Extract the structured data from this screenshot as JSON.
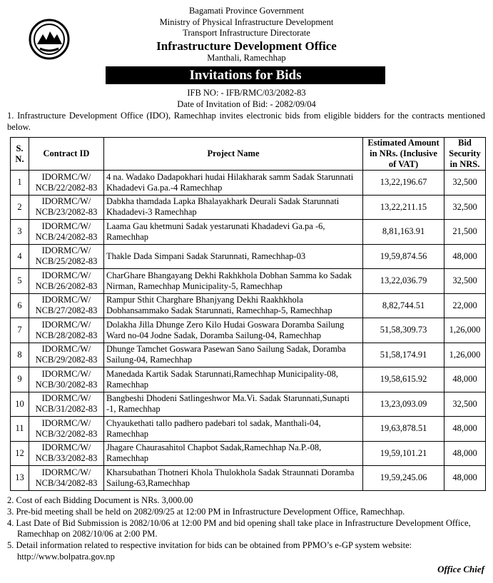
{
  "header": {
    "lines": [
      "Bagamati Province Government",
      "Ministry of Physical Infrastructure Development",
      "Transport Infrastructure Directorate"
    ],
    "office": "Infrastructure Development Office",
    "location": "Manthali, Ramechhap",
    "banner": "Invitations for Bids",
    "ifb_no": "IFB NO: - IFB/RMC/03/2082-83",
    "date": "Date of Invitation of Bid: - 2082/09/04"
  },
  "intro": "1. Infrastructure Development Office (IDO), Ramechhap invites electronic bids from eligible bidders for the contracts mentioned below.",
  "table": {
    "columns": [
      "S. N.",
      "Contract ID",
      "Project Name",
      "Estimated Amount in NRs. (Inclusive of VAT)",
      "Bid Security in NRS."
    ],
    "rows": [
      [
        "1",
        [
          "IDORMC/W/",
          "NCB/22/2082-83"
        ],
        "4 na. Wadako Dadapokhari hudai Hilakharak samm Sadak Starunnati Khadadevi Ga.pa.-4 Ramechhap",
        "13,22,196.67",
        "32,500"
      ],
      [
        "2",
        [
          "IDORMC/W/",
          "NCB/23/2082-83"
        ],
        "Dabkha thamdada Lapka Bhalayakhark Deurali Sadak Starunnati Khadadevi-3 Ramechhap",
        "13,22,211.15",
        "32,500"
      ],
      [
        "3",
        [
          "IDORMC/W/",
          "NCB/24/2082-83"
        ],
        "Laama Gau khetmuni Sadak yestarunati Khadadevi Ga.pa -6, Ramechhap",
        "8,81,163.91",
        "21,500"
      ],
      [
        "4",
        [
          "IDORMC/W/",
          "NCB/25/2082-83"
        ],
        "Thakle Dada Simpani  Sadak Starunnati, Ramechhap-03",
        "19,59,874.56",
        "48,000"
      ],
      [
        "5",
        [
          "IDORMC/W/",
          "NCB/26/2082-83"
        ],
        "CharGhare Bhangayang Dekhi Rakhkhola Dobhan Samma ko Sadak Nirman, Ramechhap Municipality-5, Ramechhap",
        "13,22,036.79",
        "32,500"
      ],
      [
        "6",
        [
          "IDORMC/W/",
          "NCB/27/2082-83"
        ],
        "Rampur Sthit Charghare Bhanjyang Dekhi Raakhkhola Dobhansammako Sadak Starunnati, Ramechhap-5, Ramechhap",
        "8,82,744.51",
        "22,000"
      ],
      [
        "7",
        [
          "IDORMC/W/",
          "NCB/28/2082-83"
        ],
        "Dolakha Jilla Dhunge Zero Kilo Hudai Goswara Doramba Sailung Ward no-04 Jodne Sadak, Doramba Sailung-04, Ramechhap",
        "51,58,309.73",
        "1,26,000"
      ],
      [
        "8",
        [
          "IDORMC/W/",
          "NCB/29/2082-83"
        ],
        "Dhunge Tamchet Goswara Pasewan Sano Sailung Sadak, Doramba Sailung-04, Ramechhap",
        "51,58,174.91",
        "1,26,000"
      ],
      [
        "9",
        [
          "IDORMC/W/",
          "NCB/30/2082-83"
        ],
        "Manedada Kartik Sadak Starunnati,Ramechhap Municipality-08, Ramechhap",
        "19,58,615.92",
        "48,000"
      ],
      [
        "10",
        [
          "IDORMC/W/",
          "NCB/31/2082-83"
        ],
        "Bangbeshi Dhodeni Satlingeshwor Ma.Vi. Sadak Starunnati,Sunapti -1, Ramechhap",
        "13,23,093.09",
        "32,500"
      ],
      [
        "11",
        [
          "IDORMC/W/",
          "NCB/32/2082-83"
        ],
        "Chyaukethati tallo padhero padebari tol sadak, Manthali-04, Ramechhap",
        "19,63,878.51",
        "48,000"
      ],
      [
        "12",
        [
          "IDORMC/W/",
          "NCB/33/2082-83"
        ],
        "Jhagare Chaurasahitol Chapbot Sadak,Ramechhap Na.P.-08, Ramechhap",
        "19,59,101.21",
        "48,000"
      ],
      [
        "13",
        [
          "IDORMC/W/",
          "NCB/34/2082-83"
        ],
        "Kharsubathan Thotneri Khola Thulokhola Sadak Straunnati Doramba Sailung-63,Ramechhap",
        "19,59,245.06",
        "48,000"
      ]
    ]
  },
  "notes": [
    "2. Cost of each Bidding Document is NRs. 3,000.00",
    "3. Pre-bid meeting shall be held on 2082/09/25 at 12:00 PM in Infrastructure Development Office, Ramechhap.",
    "4. Last Date of Bid Submission is 2082/10/06 at 12:00 PM and bid opening shall take place in Infrastructure Development Office, Ramechhap on 2082/10/06 at 2:00 PM.",
    "5. Detail information related to respective invitation for bids can be obtained from PPMO’s e-GP system website: http://www.bolpatra.gov.np"
  ],
  "signature": "Office Chief"
}
